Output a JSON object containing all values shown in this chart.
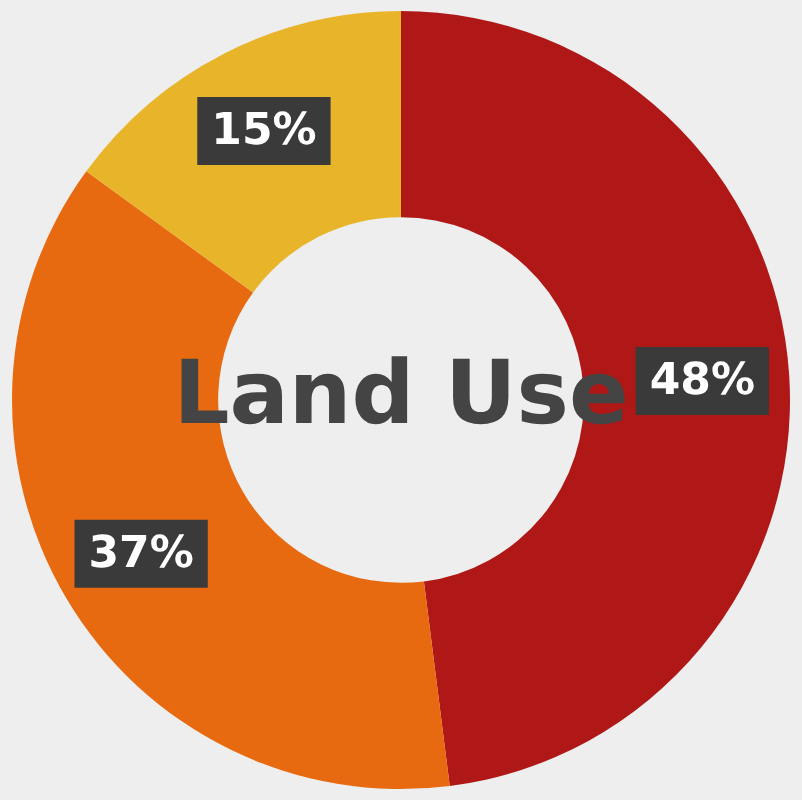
{
  "chart_data": {
    "type": "donut",
    "title": "Land Use",
    "categories": [
      null,
      null,
      null
    ],
    "values": [
      48,
      37,
      15
    ],
    "colors": [
      "#b01818",
      "#e86a10",
      "#e8b42a"
    ],
    "value_labels": [
      "48%",
      "37%",
      "15%"
    ],
    "legend": false
  }
}
